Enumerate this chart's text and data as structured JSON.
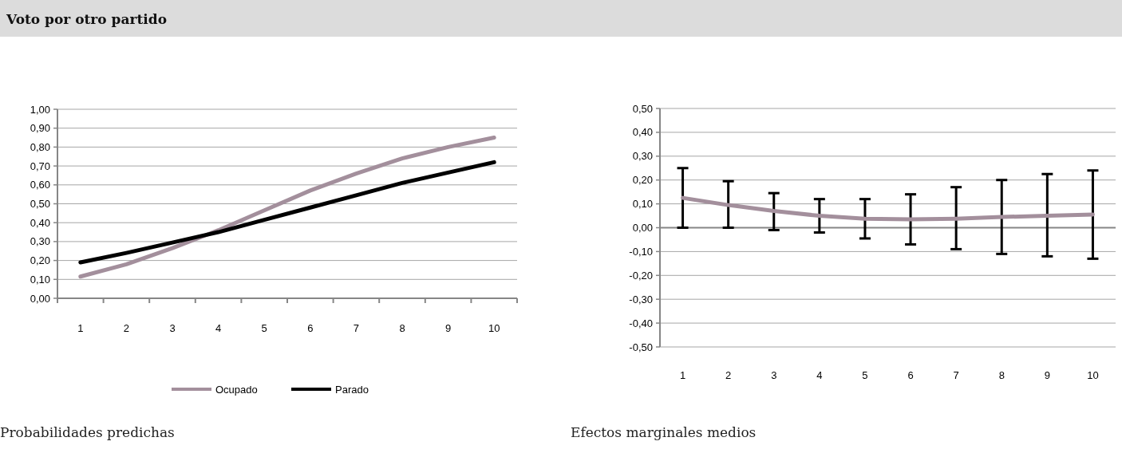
{
  "chart_data": [
    {
      "type": "line",
      "title": "Voto por otro partido",
      "categories": [
        "1",
        "2",
        "3",
        "4",
        "5",
        "6",
        "7",
        "8",
        "9",
        "10"
      ],
      "series": [
        {
          "name": "Ocupado",
          "color": "#a38f9c",
          "values": [
            0.115,
            0.18,
            0.265,
            0.36,
            0.465,
            0.57,
            0.66,
            0.74,
            0.8,
            0.85
          ]
        },
        {
          "name": "Parado",
          "color": "#000000",
          "values": [
            0.19,
            0.24,
            0.295,
            0.35,
            0.415,
            0.48,
            0.545,
            0.61,
            0.665,
            0.72
          ]
        }
      ],
      "ylim": [
        0,
        1
      ],
      "yticks": [
        {
          "value": 0,
          "label": "0,00"
        },
        {
          "value": 0.1,
          "label": "0,10"
        },
        {
          "value": 0.2,
          "label": "0,20"
        },
        {
          "value": 0.3,
          "label": "0,30"
        },
        {
          "value": 0.4,
          "label": "0,40"
        },
        {
          "value": 0.5,
          "label": "0,50"
        },
        {
          "value": 0.6,
          "label": "0,60"
        },
        {
          "value": 0.7,
          "label": "0,70"
        },
        {
          "value": 0.8,
          "label": "0,80"
        },
        {
          "value": 0.9,
          "label": "0,90"
        },
        {
          "value": 1,
          "label": "1,00"
        }
      ],
      "grid": "y",
      "legend": "bottom",
      "annotations": [
        "Probabilidades predichas"
      ]
    },
    {
      "type": "line",
      "categories": [
        "1",
        "2",
        "3",
        "4",
        "5",
        "6",
        "7",
        "8",
        "9",
        "10"
      ],
      "series": [
        {
          "color": "#a38f9c",
          "values": [
            0.125,
            0.095,
            0.07,
            0.05,
            0.038,
            0.035,
            0.038,
            0.045,
            0.05,
            0.055
          ],
          "errors": [
            [
              0,
              0.25
            ],
            [
              0,
              0.195
            ],
            [
              -0.01,
              0.145
            ],
            [
              -0.02,
              0.12
            ],
            [
              -0.045,
              0.12
            ],
            [
              -0.07,
              0.14
            ],
            [
              -0.09,
              0.17
            ],
            [
              -0.11,
              0.2
            ],
            [
              -0.12,
              0.225
            ],
            [
              -0.13,
              0.24
            ]
          ]
        }
      ],
      "ylim": [
        -0.5,
        0.5
      ],
      "yticks": [
        {
          "value": -0.5,
          "label": "-0,50"
        },
        {
          "value": -0.4,
          "label": "-0,40"
        },
        {
          "value": -0.3,
          "label": "-0,30"
        },
        {
          "value": -0.2,
          "label": "-0,20"
        },
        {
          "value": -0.1,
          "label": "-0,10"
        },
        {
          "value": 0,
          "label": "0,00"
        },
        {
          "value": 0.1,
          "label": "0,10"
        },
        {
          "value": 0.2,
          "label": "0,20"
        },
        {
          "value": 0.3,
          "label": "0,30"
        },
        {
          "value": 0.4,
          "label": "0,40"
        },
        {
          "value": 0.5,
          "label": "0,50"
        }
      ],
      "grid": "y",
      "annotations": [
        "Efectos marginales medios"
      ]
    }
  ]
}
